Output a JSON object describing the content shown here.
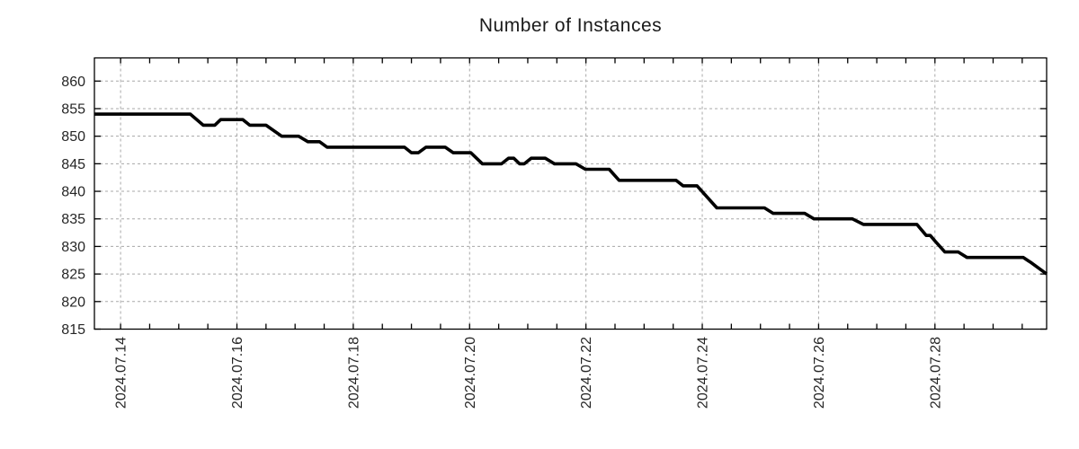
{
  "title": "Number of Instances",
  "chart_data": {
    "type": "line",
    "title": "Number of Instances",
    "grid": true,
    "legend": "none",
    "background_color": "#ffffff",
    "line_color": "#000000",
    "line_width": 3.6,
    "grid_color": "#a8a8a8",
    "axis_color": "#000000",
    "text_color": "#262626",
    "x_axis": {
      "unit": "days since 2024.07.14",
      "range_days": [
        -0.45,
        15.92
      ],
      "major_tick_days": [
        0,
        2,
        4,
        6,
        8,
        10,
        12,
        14
      ],
      "major_tick_labels": [
        "2024.07.14",
        "2024.07.16",
        "2024.07.18",
        "2024.07.20",
        "2024.07.22",
        "2024.07.24",
        "2024.07.26",
        "2024.07.28"
      ],
      "minor_tick_step_days": 0.5
    },
    "y_axis": {
      "range": [
        815,
        864.2
      ],
      "ticks": [
        815,
        820,
        825,
        830,
        835,
        840,
        845,
        850,
        855,
        860
      ],
      "tick_labels": [
        "815",
        "820",
        "825",
        "830",
        "835",
        "840",
        "845",
        "850",
        "855",
        "860"
      ]
    },
    "series": [
      {
        "name": "number-of-instances",
        "points_day_value": [
          [
            -0.45,
            854
          ],
          [
            1.2,
            854
          ],
          [
            1.42,
            852
          ],
          [
            1.62,
            852
          ],
          [
            1.72,
            853
          ],
          [
            2.1,
            853
          ],
          [
            2.22,
            852
          ],
          [
            2.5,
            852
          ],
          [
            2.77,
            850
          ],
          [
            3.06,
            850
          ],
          [
            3.22,
            849
          ],
          [
            3.42,
            849
          ],
          [
            3.55,
            848
          ],
          [
            4.88,
            848
          ],
          [
            5.0,
            847
          ],
          [
            5.12,
            847
          ],
          [
            5.25,
            848
          ],
          [
            5.58,
            848
          ],
          [
            5.72,
            847
          ],
          [
            6.02,
            847
          ],
          [
            6.22,
            845
          ],
          [
            6.55,
            845
          ],
          [
            6.67,
            846
          ],
          [
            6.76,
            846
          ],
          [
            6.86,
            845
          ],
          [
            6.94,
            845
          ],
          [
            7.06,
            846
          ],
          [
            7.3,
            846
          ],
          [
            7.46,
            845
          ],
          [
            7.83,
            845
          ],
          [
            7.99,
            844
          ],
          [
            8.4,
            844
          ],
          [
            8.57,
            842
          ],
          [
            9.55,
            842
          ],
          [
            9.67,
            841
          ],
          [
            9.91,
            841
          ],
          [
            10.25,
            837
          ],
          [
            11.07,
            837
          ],
          [
            11.22,
            836
          ],
          [
            11.76,
            836
          ],
          [
            11.92,
            835
          ],
          [
            12.58,
            835
          ],
          [
            12.77,
            834
          ],
          [
            13.69,
            834
          ],
          [
            13.85,
            832
          ],
          [
            13.92,
            832
          ],
          [
            14.0,
            831
          ],
          [
            14.17,
            829
          ],
          [
            14.4,
            829
          ],
          [
            14.55,
            828
          ],
          [
            15.52,
            828
          ],
          [
            15.66,
            827
          ],
          [
            15.92,
            825
          ]
        ]
      }
    ]
  }
}
